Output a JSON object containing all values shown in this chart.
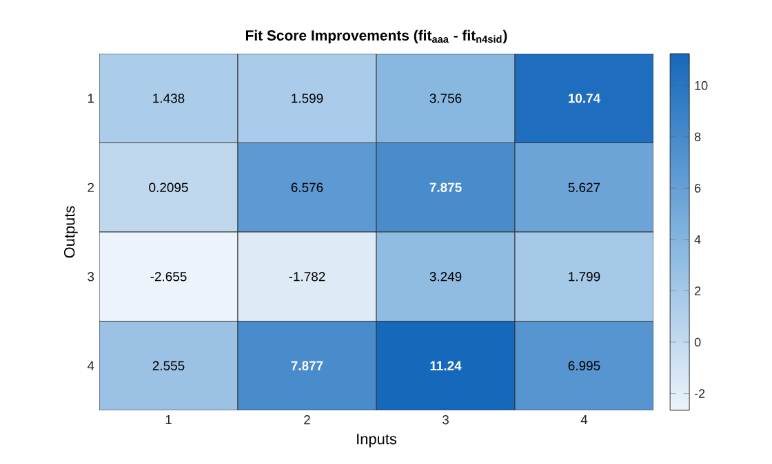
{
  "chart_data": {
    "type": "heatmap",
    "title": "Fit Score Improvements (fit$_{aaa}$ - fit$_{n4sid}$)",
    "xlabel": "Inputs",
    "ylabel": "Outputs",
    "categories": [
      "1",
      "2",
      "3",
      "4"
    ],
    "y_categories": [
      "1",
      "2",
      "3",
      "4"
    ],
    "cells": [
      [
        1.438,
        1.599,
        3.756,
        10.74
      ],
      [
        0.2095,
        6.576,
        7.875,
        5.627
      ],
      [
        -2.655,
        -1.782,
        3.249,
        1.799
      ],
      [
        2.555,
        7.877,
        11.24,
        6.995
      ]
    ],
    "data_labels": true,
    "clim": [
      -2.655,
      11.24
    ],
    "cticks": [
      -2,
      0,
      2,
      4,
      6,
      8,
      10
    ]
  }
}
